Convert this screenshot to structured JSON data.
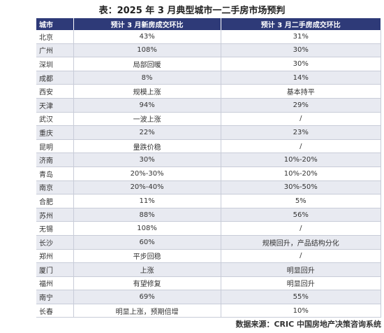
{
  "title": "表：2025 年 3 月典型城市一二手房市场预判",
  "table": {
    "headers": [
      "城市",
      "预计 3 月新房成交环比",
      "预计 3 月二手房成交环比"
    ],
    "rows": [
      [
        "北京",
        "43%",
        "31%"
      ],
      [
        "广州",
        "108%",
        "30%"
      ],
      [
        "深圳",
        "局部回暖",
        "30%"
      ],
      [
        "成都",
        "8%",
        "14%"
      ],
      [
        "西安",
        "规模上涨",
        "基本持平"
      ],
      [
        "天津",
        "94%",
        "29%"
      ],
      [
        "武汉",
        "一波上涨",
        "/"
      ],
      [
        "重庆",
        "22%",
        "23%"
      ],
      [
        "昆明",
        "量跌价稳",
        "/"
      ],
      [
        "济南",
        "30%",
        "10%-20%"
      ],
      [
        "青岛",
        "20%-30%",
        "10%-20%"
      ],
      [
        "南京",
        "20%-40%",
        "30%-50%"
      ],
      [
        "合肥",
        "11%",
        "5%"
      ],
      [
        "苏州",
        "88%",
        "56%"
      ],
      [
        "无锡",
        "108%",
        "/"
      ],
      [
        "长沙",
        "60%",
        "规模回升，产品结构分化"
      ],
      [
        "郑州",
        "平步回稳",
        "/"
      ],
      [
        "厦门",
        "上涨",
        "明显回升"
      ],
      [
        "福州",
        "有望修复",
        "明显回升"
      ],
      [
        "南宁",
        "69%",
        "55%"
      ],
      [
        "长春",
        "明显上涨，预期倍增",
        "10%"
      ]
    ]
  },
  "source": "数据来源：CRIC 中国房地产决策咨询系统"
}
